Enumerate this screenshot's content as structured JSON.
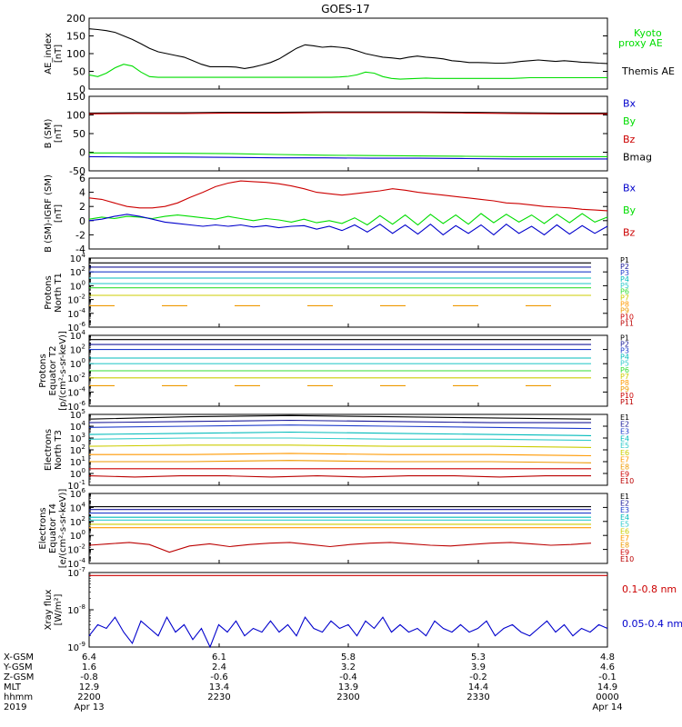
{
  "title": "GOES-17",
  "colors": {
    "black": "#000000",
    "green": "#00dd00",
    "red": "#cc0000",
    "blue": "#0000cc",
    "navy": "#1a1a99",
    "blue2": "#1e3ccc",
    "cyan": "#00bbbb",
    "teal": "#33cccc",
    "lime": "#33dd33",
    "yellow": "#cccc00",
    "orange": "#ee9900",
    "orange2": "#ff9900",
    "darkred": "#bb0000"
  },
  "chart_data": [
    {
      "type": "line",
      "panel": "ae",
      "ylabel": "AE_index",
      "yunit": "[nT]",
      "ylim": [
        0,
        200
      ],
      "yticks": [
        "200",
        "150",
        "100",
        "50",
        "0"
      ],
      "legend": [
        {
          "label": "Kyoto",
          "color": "green"
        },
        {
          "label": "proxy AE",
          "color": "green"
        },
        {
          "label": "Themis AE",
          "color": "black"
        }
      ],
      "series": [
        {
          "name": "Themis AE",
          "color": "black",
          "values": [
            170,
            168,
            165,
            160,
            150,
            140,
            128,
            115,
            105,
            100,
            95,
            90,
            80,
            70,
            63,
            63,
            63,
            62,
            58,
            62,
            68,
            75,
            85,
            100,
            115,
            125,
            122,
            118,
            120,
            118,
            115,
            108,
            100,
            95,
            90,
            88,
            85,
            90,
            93,
            90,
            88,
            85,
            80,
            78,
            75,
            75,
            74,
            73,
            73,
            75,
            78,
            80,
            82,
            80,
            78,
            80,
            78,
            76,
            75,
            73,
            72
          ]
        },
        {
          "name": "Kyoto proxy AE",
          "color": "green",
          "values": [
            40,
            35,
            45,
            60,
            70,
            65,
            48,
            35,
            33,
            33,
            33,
            33,
            33,
            33,
            33,
            33,
            33,
            33,
            33,
            33,
            33,
            33,
            33,
            33,
            33,
            33,
            33,
            33,
            33,
            34,
            36,
            40,
            48,
            45,
            35,
            30,
            28,
            29,
            30,
            31,
            30,
            30,
            30,
            30,
            30,
            30,
            30,
            30,
            30,
            30,
            31,
            32,
            32,
            32,
            32,
            32,
            32,
            32,
            32,
            32,
            32
          ]
        }
      ]
    },
    {
      "type": "line",
      "panel": "b_sm",
      "ylabel": "B (SM)",
      "yunit": "[nT]",
      "ylim": [
        -50,
        150
      ],
      "yticks": [
        "150",
        "100",
        "50",
        "0",
        "-50"
      ],
      "legend": [
        {
          "label": "Bx",
          "color": "blue"
        },
        {
          "label": "By",
          "color": "green"
        },
        {
          "label": "Bz",
          "color": "red"
        },
        {
          "label": "Bmag",
          "color": "black"
        }
      ],
      "series": [
        {
          "name": "Bmag",
          "color": "black",
          "values": [
            105,
            106,
            106,
            107,
            107,
            108,
            108,
            108,
            107,
            106,
            105,
            105
          ]
        },
        {
          "name": "Bz",
          "color": "red",
          "values": [
            103,
            104,
            104,
            105,
            105,
            106,
            106,
            106,
            105,
            104,
            103,
            103
          ]
        },
        {
          "name": "By",
          "color": "green",
          "values": [
            -2,
            -2,
            -3,
            -4,
            -6,
            -8,
            -9,
            -10,
            -11,
            -12,
            -12,
            -12
          ]
        },
        {
          "name": "Bx",
          "color": "blue",
          "values": [
            -12,
            -13,
            -13,
            -14,
            -15,
            -15,
            -16,
            -16,
            -17,
            -18,
            -18,
            -18
          ]
        }
      ]
    },
    {
      "type": "line",
      "panel": "b_igrf",
      "ylabel": "B (SM)-IGRF (SM)",
      "yunit": "[nT]",
      "ylim": [
        -4,
        6
      ],
      "yticks": [
        "6",
        "4",
        "2",
        "0",
        "-2",
        "-4"
      ],
      "legend": [
        {
          "label": "Bx",
          "color": "blue"
        },
        {
          "label": "By",
          "color": "green"
        },
        {
          "label": "Bz",
          "color": "red"
        }
      ],
      "series": [
        {
          "name": "Bz",
          "color": "red",
          "values": [
            3.2,
            3.0,
            2.5,
            2.0,
            1.8,
            1.8,
            2.0,
            2.5,
            3.3,
            4.0,
            4.8,
            5.3,
            5.6,
            5.5,
            5.4,
            5.2,
            4.9,
            4.5,
            4.0,
            3.8,
            3.6,
            3.8,
            4.0,
            4.2,
            4.5,
            4.3,
            4.0,
            3.8,
            3.6,
            3.4,
            3.2,
            3.0,
            2.8,
            2.5,
            2.4,
            2.2,
            2.0,
            1.9,
            1.8,
            1.6,
            1.5,
            1.4
          ]
        },
        {
          "name": "By",
          "color": "green",
          "values": [
            0.2,
            0.5,
            0.3,
            0.6,
            0.5,
            0.3,
            0.6,
            0.8,
            0.6,
            0.4,
            0.2,
            0.6,
            0.3,
            0.0,
            0.3,
            0.1,
            -0.2,
            0.2,
            -0.3,
            0.0,
            -0.4,
            0.4,
            -0.6,
            0.7,
            -0.5,
            0.8,
            -0.6,
            0.9,
            -0.4,
            0.8,
            -0.5,
            1.0,
            -0.3,
            0.9,
            -0.2,
            0.8,
            -0.4,
            0.9,
            -0.3,
            1.0,
            -0.2,
            0.5
          ]
        },
        {
          "name": "Bx",
          "color": "blue",
          "values": [
            0.0,
            0.2,
            0.6,
            0.9,
            0.6,
            0.2,
            -0.2,
            -0.4,
            -0.6,
            -0.8,
            -0.6,
            -0.8,
            -0.6,
            -0.9,
            -0.7,
            -1.0,
            -0.8,
            -0.7,
            -1.2,
            -0.8,
            -1.4,
            -0.6,
            -1.6,
            -0.5,
            -1.8,
            -0.6,
            -1.9,
            -0.5,
            -2.0,
            -0.7,
            -1.8,
            -0.6,
            -2.0,
            -0.5,
            -1.8,
            -0.8,
            -2.0,
            -0.6,
            -1.9,
            -0.7,
            -1.8,
            -0.8
          ]
        }
      ]
    },
    {
      "type": "line",
      "panel": "protons_t1",
      "ylabel": "Protons",
      "ylabel2": "North T1",
      "scale": "log",
      "ylim": [
        -6,
        4
      ],
      "yticks": [
        4,
        2,
        0,
        -2,
        -4,
        -6
      ],
      "legend": [
        {
          "label": "P1",
          "color": "black"
        },
        {
          "label": "P2",
          "color": "navy"
        },
        {
          "label": "P3",
          "color": "blue2"
        },
        {
          "label": "P4",
          "color": "cyan"
        },
        {
          "label": "P5",
          "color": "teal"
        },
        {
          "label": "P6",
          "color": "lime"
        },
        {
          "label": "P7",
          "color": "yellow"
        },
        {
          "label": "P8",
          "color": "orange2"
        },
        {
          "label": "P9",
          "color": "orange"
        },
        {
          "label": "P10",
          "color": "red"
        },
        {
          "label": "P11",
          "color": "darkred"
        }
      ],
      "series": [
        {
          "name": "P1",
          "color": "black",
          "log10": 3.3
        },
        {
          "name": "P2",
          "color": "navy",
          "log10": 2.7
        },
        {
          "name": "P3",
          "color": "blue2",
          "log10": 2.0
        },
        {
          "name": "P4",
          "color": "cyan",
          "log10": 1.1
        },
        {
          "name": "P5",
          "color": "teal",
          "log10": 0.3
        },
        {
          "name": "P6",
          "color": "lime",
          "log10": -0.3
        },
        {
          "name": "P7",
          "color": "yellow",
          "log10": -1.4
        },
        {
          "name": "P9",
          "color": "orange",
          "log10": -2.9,
          "dashed": true
        }
      ]
    },
    {
      "type": "line",
      "panel": "protons_t2",
      "ylabel": "Protons",
      "ylabel2": "Equator T2",
      "yunit": "[p/(cm²-s-sr-keV)]",
      "scale": "log",
      "ylim": [
        -6,
        4
      ],
      "yticks": [
        4,
        2,
        0,
        -2,
        -4,
        -6
      ],
      "legend": [
        {
          "label": "P1",
          "color": "black"
        },
        {
          "label": "P2",
          "color": "navy"
        },
        {
          "label": "P3",
          "color": "blue2"
        },
        {
          "label": "P4",
          "color": "cyan"
        },
        {
          "label": "P5",
          "color": "teal"
        },
        {
          "label": "P6",
          "color": "lime"
        },
        {
          "label": "P7",
          "color": "yellow"
        },
        {
          "label": "P8",
          "color": "orange2"
        },
        {
          "label": "P9",
          "color": "orange"
        },
        {
          "label": "P10",
          "color": "red"
        },
        {
          "label": "P11",
          "color": "darkred"
        }
      ],
      "series": [
        {
          "name": "P1",
          "color": "black",
          "log10": 3.4
        },
        {
          "name": "P2",
          "color": "navy",
          "log10": 2.7
        },
        {
          "name": "P3",
          "color": "blue2",
          "log10": 2.0
        },
        {
          "name": "P4",
          "color": "cyan",
          "log10": 0.8
        },
        {
          "name": "P5",
          "color": "teal",
          "log10": 0.0
        },
        {
          "name": "P6",
          "color": "lime",
          "log10": -1.0
        },
        {
          "name": "P7",
          "color": "yellow",
          "log10": -2.0
        },
        {
          "name": "P9",
          "color": "orange",
          "log10": -3.1,
          "dashed": true
        }
      ]
    },
    {
      "type": "line",
      "panel": "electrons_t3",
      "ylabel": "Electrons",
      "ylabel2": "North T3",
      "scale": "log",
      "ylim": [
        -1,
        5
      ],
      "yticks": [
        5,
        4,
        3,
        2,
        1,
        0,
        -1
      ],
      "legend": [
        {
          "label": "E1",
          "color": "black"
        },
        {
          "label": "E2",
          "color": "navy"
        },
        {
          "label": "E3",
          "color": "blue2"
        },
        {
          "label": "E4",
          "color": "cyan"
        },
        {
          "label": "E5",
          "color": "teal"
        },
        {
          "label": "E6",
          "color": "yellow"
        },
        {
          "label": "E7",
          "color": "orange2"
        },
        {
          "label": "E8",
          "color": "orange"
        },
        {
          "label": "E9",
          "color": "red"
        },
        {
          "label": "E10",
          "color": "darkred"
        }
      ],
      "series": [
        {
          "name": "E1",
          "color": "black",
          "log10": [
            4.6,
            4.8,
            4.9,
            4.8,
            4.7,
            4.6
          ]
        },
        {
          "name": "E2",
          "color": "navy",
          "log10": [
            4.3,
            4.4,
            4.5,
            4.4,
            4.3,
            4.3
          ]
        },
        {
          "name": "E3",
          "color": "blue2",
          "log10": [
            3.9,
            4.0,
            4.1,
            4.0,
            3.9,
            3.8
          ]
        },
        {
          "name": "E4",
          "color": "cyan",
          "log10": [
            3.3,
            3.4,
            3.5,
            3.4,
            3.3,
            3.2
          ]
        },
        {
          "name": "E5",
          "color": "teal",
          "log10": [
            2.9,
            3.0,
            3.0,
            2.9,
            2.9,
            2.8
          ]
        },
        {
          "name": "E6",
          "color": "yellow",
          "log10": [
            2.3,
            2.4,
            2.4,
            2.3,
            2.3,
            2.2
          ]
        },
        {
          "name": "E7",
          "color": "orange2",
          "log10": [
            1.6,
            1.6,
            1.7,
            1.6,
            1.6,
            1.5
          ]
        },
        {
          "name": "E8",
          "color": "orange",
          "log10": [
            1.0,
            1.0,
            1.1,
            1.0,
            1.0,
            0.9
          ]
        },
        {
          "name": "E9",
          "color": "red",
          "log10": [
            0.4,
            0.4,
            0.4,
            0.4,
            0.4,
            0.4
          ]
        },
        {
          "name": "E10",
          "color": "darkred",
          "log10": [
            -0.2,
            -0.3,
            -0.2,
            -0.2,
            -0.3,
            -0.2,
            -0.3,
            -0.2,
            -0.2,
            -0.3,
            -0.2,
            -0.2
          ]
        }
      ]
    },
    {
      "type": "line",
      "panel": "electrons_t4",
      "ylabel": "Electrons",
      "ylabel2": "Equator T4",
      "yunit": "[e/(cm²-s-sr-keV)]",
      "scale": "log",
      "ylim": [
        -4,
        6
      ],
      "yticks": [
        6,
        4,
        2,
        0,
        -2,
        -4
      ],
      "legend": [
        {
          "label": "E1",
          "color": "black"
        },
        {
          "label": "E2",
          "color": "navy"
        },
        {
          "label": "E3",
          "color": "blue2"
        },
        {
          "label": "E4",
          "color": "cyan"
        },
        {
          "label": "E5",
          "color": "teal"
        },
        {
          "label": "E6",
          "color": "yellow"
        },
        {
          "label": "E7",
          "color": "orange2"
        },
        {
          "label": "E8",
          "color": "orange"
        },
        {
          "label": "E9",
          "color": "red"
        },
        {
          "label": "E10",
          "color": "darkred"
        }
      ],
      "series": [
        {
          "name": "E1",
          "color": "black",
          "log10": 4.1
        },
        {
          "name": "E2",
          "color": "navy",
          "log10": 3.7
        },
        {
          "name": "E3",
          "color": "blue2",
          "log10": 3.2
        },
        {
          "name": "E4",
          "color": "cyan",
          "log10": 2.6
        },
        {
          "name": "E5",
          "color": "teal",
          "log10": 2.2
        },
        {
          "name": "E6",
          "color": "yellow",
          "log10": 1.6
        },
        {
          "name": "E7",
          "color": "orange2",
          "log10": 1.1
        },
        {
          "name": "E10",
          "color": "darkred",
          "log10": [
            -1.4,
            -1.2,
            -1.0,
            -1.3,
            -2.4,
            -1.5,
            -1.2,
            -1.6,
            -1.3,
            -1.1,
            -1.0,
            -1.3,
            -1.6,
            -1.3,
            -1.1,
            -1.0,
            -1.2,
            -1.4,
            -1.5,
            -1.3,
            -1.1,
            -1.0,
            -1.2,
            -1.4,
            -1.3,
            -1.1
          ]
        }
      ]
    },
    {
      "type": "line",
      "panel": "xray",
      "ylabel": "Xray flux",
      "yunit": "[W/m²]",
      "scale": "log",
      "ylim": [
        -9,
        -7
      ],
      "yticks": [
        -7,
        -8,
        -9
      ],
      "legend": [
        {
          "label": "0.1-0.8 nm",
          "color": "red"
        },
        {
          "label": "0.05-0.4 nm",
          "color": "blue"
        }
      ],
      "series": [
        {
          "name": "0.1-0.8 nm",
          "color": "red",
          "log10": -7.08
        },
        {
          "name": "0.05-0.4 nm",
          "color": "blue",
          "log10": [
            -8.7,
            -8.4,
            -8.5,
            -8.2,
            -8.6,
            -8.9,
            -8.3,
            -8.5,
            -8.7,
            -8.2,
            -8.6,
            -8.4,
            -8.8,
            -8.5,
            -9.0,
            -8.4,
            -8.6,
            -8.3,
            -8.7,
            -8.5,
            -8.6,
            -8.3,
            -8.6,
            -8.4,
            -8.7,
            -8.2,
            -8.5,
            -8.6,
            -8.3,
            -8.5,
            -8.4,
            -8.7,
            -8.3,
            -8.5,
            -8.2,
            -8.6,
            -8.4,
            -8.6,
            -8.5,
            -8.7,
            -8.3,
            -8.5,
            -8.6,
            -8.4,
            -8.6,
            -8.5,
            -8.3,
            -8.7,
            -8.5,
            -8.4,
            -8.6,
            -8.7,
            -8.5,
            -8.3,
            -8.6,
            -8.4,
            -8.7,
            -8.5,
            -8.6,
            -8.4,
            -8.5
          ]
        }
      ]
    }
  ],
  "ephemeris": {
    "row_labels": [
      "X-GSM",
      "Y-GSM",
      "Z-GSM",
      "MLT",
      "hhmm",
      "2019"
    ],
    "columns": [
      [
        "6.4",
        "1.6",
        "-0.8",
        "12.9",
        "2200",
        "Apr 13"
      ],
      [
        "6.1",
        "2.4",
        "-0.6",
        "13.4",
        "2230",
        ""
      ],
      [
        "5.8",
        "3.2",
        "-0.4",
        "13.9",
        "2300",
        ""
      ],
      [
        "5.3",
        "3.9",
        "-0.2",
        "14.4",
        "2330",
        ""
      ],
      [
        "4.8",
        "4.6",
        "-0.1",
        "14.9",
        "0000",
        "Apr 14"
      ]
    ]
  }
}
